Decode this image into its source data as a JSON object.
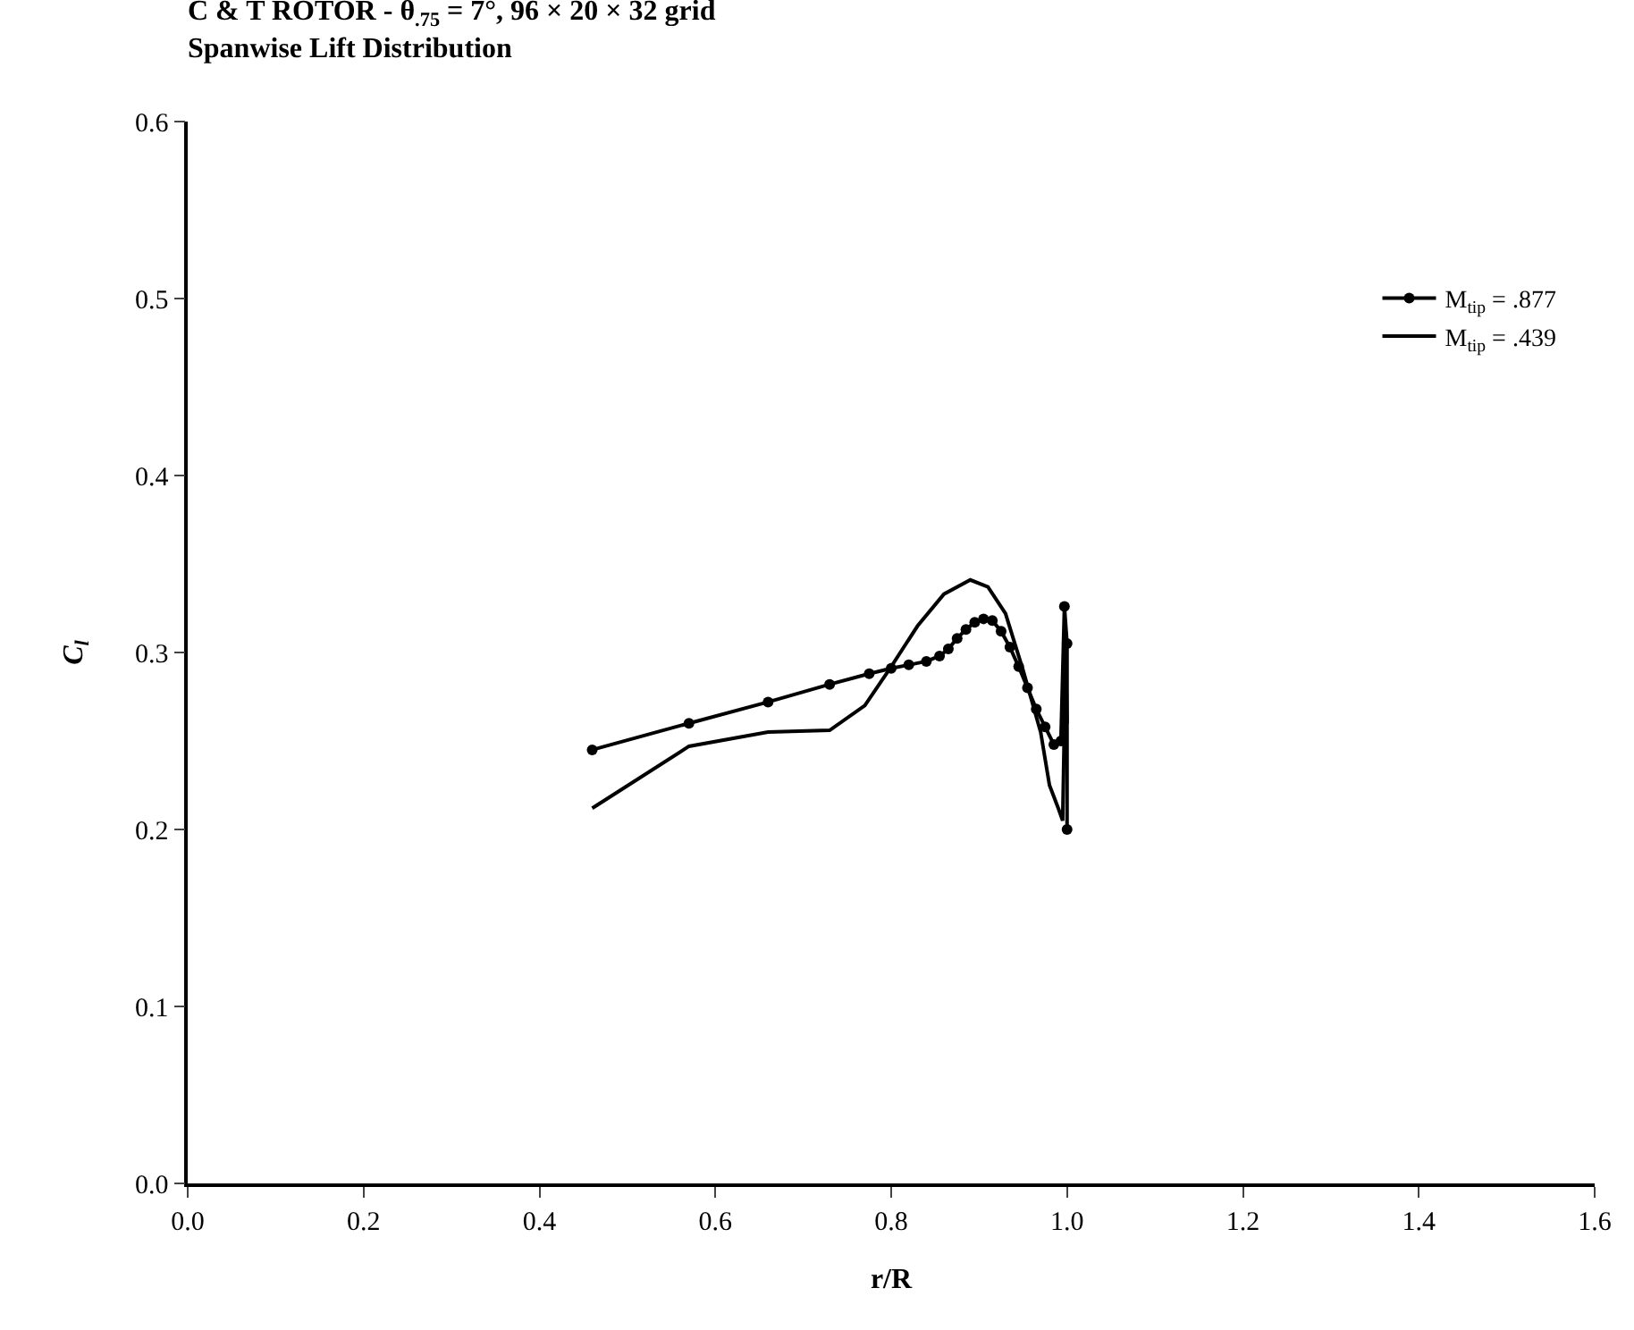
{
  "chart_data": {
    "type": "line",
    "title": "C & T ROTOR - θ$_{.75}$ = 7°, 96 × 20 × 32 grid",
    "subtitle": "Spanwise Lift Distribution",
    "xlabel": "r/R",
    "ylabel": "C$_{l}$",
    "xlim": [
      0,
      1.6
    ],
    "xticks": [
      {
        "value": 0,
        "label": "0.0"
      },
      {
        "value": 0.2,
        "label": "0.2"
      },
      {
        "value": 0.4,
        "label": "0.4"
      },
      {
        "value": 0.6,
        "label": "0.6"
      },
      {
        "value": 0.8,
        "label": "0.8"
      },
      {
        "value": 1,
        "label": "1.0"
      },
      {
        "value": 1.2,
        "label": "1.2"
      },
      {
        "value": 1.4,
        "label": "1.4"
      },
      {
        "value": 1.6,
        "label": "1.6"
      }
    ],
    "ylim": [
      0,
      0.6
    ],
    "yticks": [
      {
        "value": 0,
        "label": "0.0"
      },
      {
        "value": 0.1,
        "label": "0.1"
      },
      {
        "value": 0.2,
        "label": "0.2"
      },
      {
        "value": 0.3,
        "label": "0.3"
      },
      {
        "value": 0.4,
        "label": "0.4"
      },
      {
        "value": 0.5,
        "label": "0.5"
      },
      {
        "value": 0.6,
        "label": "0.6"
      }
    ],
    "grid": false,
    "legend": "top right",
    "line_style": "solid",
    "series": [
      {
        "name": "M$_{tip}$ = .877",
        "color": "#000000",
        "marker": "circle",
        "x": [
          0.46,
          0.57,
          0.66,
          0.73,
          0.775,
          0.8,
          0.82,
          0.84,
          0.855,
          0.865,
          0.875,
          0.885,
          0.895,
          0.905,
          0.915,
          0.925,
          0.935,
          0.945,
          0.955,
          0.965,
          0.975,
          0.985,
          0.993,
          0.997,
          1.0,
          1.0
        ],
        "values": [
          0.245,
          0.26,
          0.272,
          0.282,
          0.288,
          0.291,
          0.293,
          0.295,
          0.298,
          0.302,
          0.308,
          0.313,
          0.317,
          0.319,
          0.318,
          0.312,
          0.303,
          0.292,
          0.28,
          0.268,
          0.258,
          0.248,
          0.25,
          0.326,
          0.305,
          0.2
        ]
      },
      {
        "name": "M$_{tip}$ = .439",
        "color": "#000000",
        "marker": "none",
        "x": [
          0.46,
          0.57,
          0.66,
          0.73,
          0.77,
          0.8,
          0.83,
          0.86,
          0.89,
          0.91,
          0.93,
          0.95,
          0.97,
          0.98,
          0.99,
          0.995,
          0.997,
          0.998,
          1.0
        ],
        "values": [
          0.212,
          0.247,
          0.255,
          0.256,
          0.27,
          0.292,
          0.315,
          0.333,
          0.341,
          0.337,
          0.322,
          0.29,
          0.255,
          0.225,
          0.212,
          0.205,
          0.26,
          0.31,
          0.26
        ]
      }
    ]
  }
}
